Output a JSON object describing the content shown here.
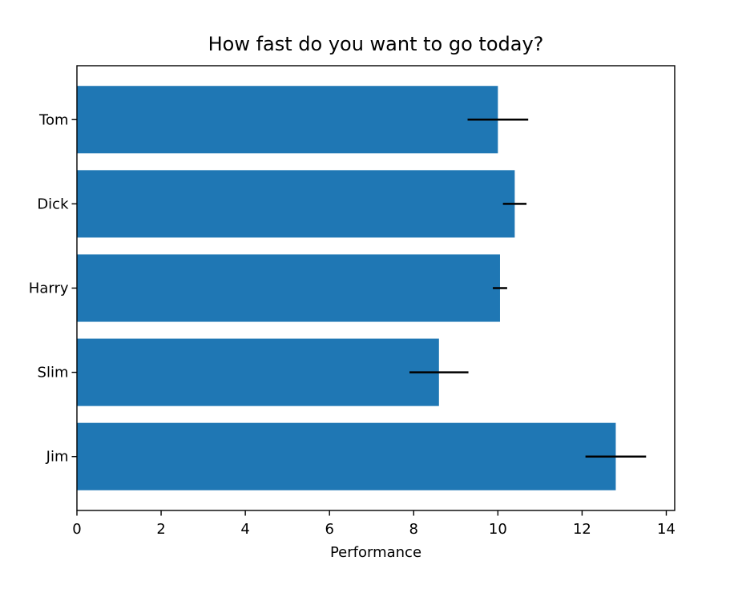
{
  "chart_data": {
    "type": "bar",
    "orientation": "horizontal",
    "title": "How fast do you want to go today?",
    "xlabel": "Performance",
    "ylabel": "",
    "categories": [
      "Tom",
      "Dick",
      "Harry",
      "Slim",
      "Jim"
    ],
    "series": [
      {
        "name": "Performance",
        "values": [
          10.0,
          10.4,
          10.05,
          8.6,
          12.8
        ],
        "errors": [
          0.72,
          0.28,
          0.17,
          0.7,
          0.72
        ]
      }
    ],
    "xlim": [
      0,
      14.2
    ],
    "xticks": [
      0,
      2,
      4,
      6,
      8,
      10,
      12,
      14
    ],
    "grid": false,
    "legend": "none",
    "colors": {
      "bar": "#1f77b4",
      "error_bar": "#000000",
      "axes": "#000000",
      "text": "#000000",
      "background": "#ffffff"
    }
  }
}
